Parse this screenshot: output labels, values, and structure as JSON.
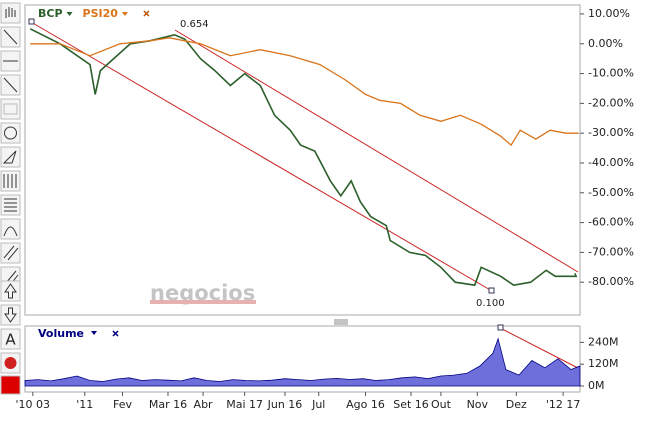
{
  "toolbar": {
    "text_tool": "A"
  },
  "watermark": "negocios",
  "chart_data": [
    {
      "type": "line",
      "annotations": [
        "0.654",
        "0.100"
      ],
      "xlim": [
        -6,
        421
      ],
      "ylim": [
        -91,
        13
      ],
      "yticks": [
        {
          "value": 10,
          "label": "10.00%"
        },
        {
          "value": 0,
          "label": "0.00%"
        },
        {
          "value": -10,
          "label": "-10.00%"
        },
        {
          "value": -20,
          "label": "-20.00%"
        },
        {
          "value": -30,
          "label": "-30.00%"
        },
        {
          "value": -40,
          "label": "-40.00%"
        },
        {
          "value": -50,
          "label": "-50.00%"
        },
        {
          "value": -60,
          "label": "-60.00%"
        },
        {
          "value": -70,
          "label": "-70.00%"
        },
        {
          "value": -80,
          "label": "-80.00%"
        }
      ],
      "series": [
        {
          "name": "BCP",
          "color": "#2b5f2b",
          "x": [
            -2,
            21,
            44,
            48,
            52,
            75,
            90,
            109,
            117,
            129,
            140,
            152,
            163,
            175,
            186,
            198,
            206,
            217,
            229,
            237,
            245,
            252,
            260,
            272,
            275,
            290,
            302,
            314,
            325,
            340,
            345,
            360,
            370,
            383,
            395,
            402,
            418,
            417
          ],
          "values": [
            5,
            0,
            -7,
            -17,
            -9,
            0,
            1,
            3,
            1.5,
            -5,
            -9,
            -14,
            -10,
            -14,
            -24,
            -29,
            -34,
            -36,
            -46,
            -51,
            -46,
            -53,
            -58,
            -61,
            -66,
            -70,
            -71,
            -75,
            -80,
            -81,
            -75,
            -78,
            -81,
            -80,
            -76,
            -78,
            -78,
            -77
          ]
        },
        {
          "name": "PSI20",
          "color": "#d9741a",
          "x": [
            -2,
            21,
            44,
            67,
            90,
            105,
            129,
            152,
            175,
            198,
            221,
            240,
            256,
            267,
            283,
            298,
            314,
            329,
            345,
            360,
            368,
            375,
            387,
            398,
            410,
            420
          ],
          "values": [
            0,
            0,
            -4,
            0,
            1,
            2,
            0,
            -4,
            -2,
            -4,
            -7,
            -12,
            -17,
            -19,
            -20,
            -24,
            -26,
            -24,
            -27,
            -31,
            -34,
            -29,
            -32,
            -29,
            -30,
            -30
          ]
        }
      ]
    },
    {
      "type": "area",
      "title": "Volume",
      "color": "#3f3fd0",
      "xlim": [
        -6,
        421
      ],
      "ylim": [
        0,
        330
      ],
      "yticks": [
        {
          "value": 240,
          "label": "240M"
        },
        {
          "value": 120,
          "label": "120M"
        },
        {
          "value": 0,
          "label": "0M"
        }
      ],
      "xticks": [
        {
          "value": 0,
          "label": "'10 03"
        },
        {
          "value": 40,
          "label": "'11"
        },
        {
          "value": 69,
          "label": "Fev"
        },
        {
          "value": 104,
          "label": "Mar 16"
        },
        {
          "value": 131,
          "label": "Abr"
        },
        {
          "value": 163,
          "label": "Mai 17"
        },
        {
          "value": 194,
          "label": "Jun 16"
        },
        {
          "value": 220,
          "label": "Jul"
        },
        {
          "value": 256,
          "label": "Ago 16"
        },
        {
          "value": 291,
          "label": "Set 16"
        },
        {
          "value": 314,
          "label": "Out"
        },
        {
          "value": 342,
          "label": "Nov"
        },
        {
          "value": 372,
          "label": "Dez"
        },
        {
          "value": 408,
          "label": "'12 17"
        }
      ],
      "x": [
        -6,
        4,
        14,
        24,
        34,
        44,
        54,
        64,
        74,
        84,
        94,
        104,
        114,
        124,
        134,
        144,
        154,
        164,
        174,
        184,
        194,
        204,
        214,
        224,
        234,
        244,
        254,
        264,
        274,
        284,
        294,
        304,
        314,
        324,
        334,
        344,
        354,
        358,
        364,
        374,
        384,
        394,
        404,
        414,
        421
      ],
      "values": [
        30,
        35,
        28,
        40,
        55,
        30,
        25,
        38,
        45,
        30,
        35,
        32,
        28,
        45,
        30,
        25,
        35,
        30,
        28,
        32,
        40,
        35,
        30,
        38,
        42,
        36,
        40,
        30,
        35,
        45,
        50,
        40,
        55,
        60,
        70,
        110,
        180,
        260,
        90,
        60,
        140,
        100,
        150,
        90,
        110
      ]
    }
  ]
}
